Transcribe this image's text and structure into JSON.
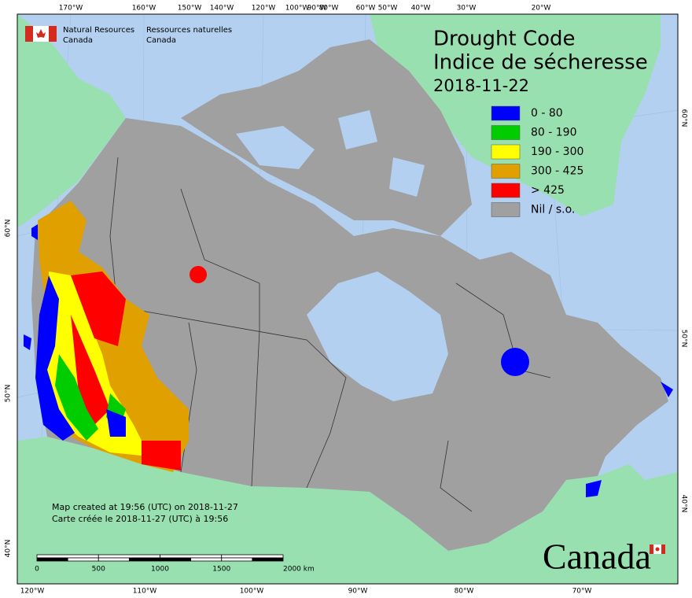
{
  "agency": {
    "en_line1": "Natural Resources",
    "en_line2": "Canada",
    "fr_line1": "Ressources naturelles",
    "fr_line2": "Canada"
  },
  "title": {
    "line1": "Drought Code",
    "line2": "Indice de sécheresse",
    "date": "2018-11-22"
  },
  "legend": [
    {
      "label": "0 - 80",
      "color": "#0000ff"
    },
    {
      "label": "80 - 190",
      "color": "#00cc00"
    },
    {
      "label": "190 - 300",
      "color": "#ffff00"
    },
    {
      "label": "300 - 425",
      "color": "#e0a000"
    },
    {
      "label": "> 425",
      "color": "#ff0000"
    },
    {
      "label": "Nil / s.o.",
      "color": "#a0a0a0"
    }
  ],
  "axes": {
    "top": [
      "170°W",
      "160°W",
      "150°W",
      "140°W",
      "120°W",
      "100°W",
      "90°W",
      "80°W",
      "60°W",
      "50°W",
      "40°W",
      "30°W",
      "20°W"
    ],
    "bottom": [
      "120°W",
      "110°W",
      "100°W",
      "90°W",
      "80°W",
      "70°W"
    ],
    "left": [
      "60°N",
      "50°N",
      "40°N"
    ],
    "right": [
      "60°N",
      "50°N",
      "40°N"
    ]
  },
  "footer": {
    "line1": "Map created at 19:56 (UTC) on 2018-11-27",
    "line2": "Carte créée le 2018-11-27 (UTC) à 19:56"
  },
  "scale_bar": {
    "labels": [
      "0",
      "500",
      "1000",
      "1500",
      "2000  km"
    ]
  },
  "wordmark": "Canada"
}
